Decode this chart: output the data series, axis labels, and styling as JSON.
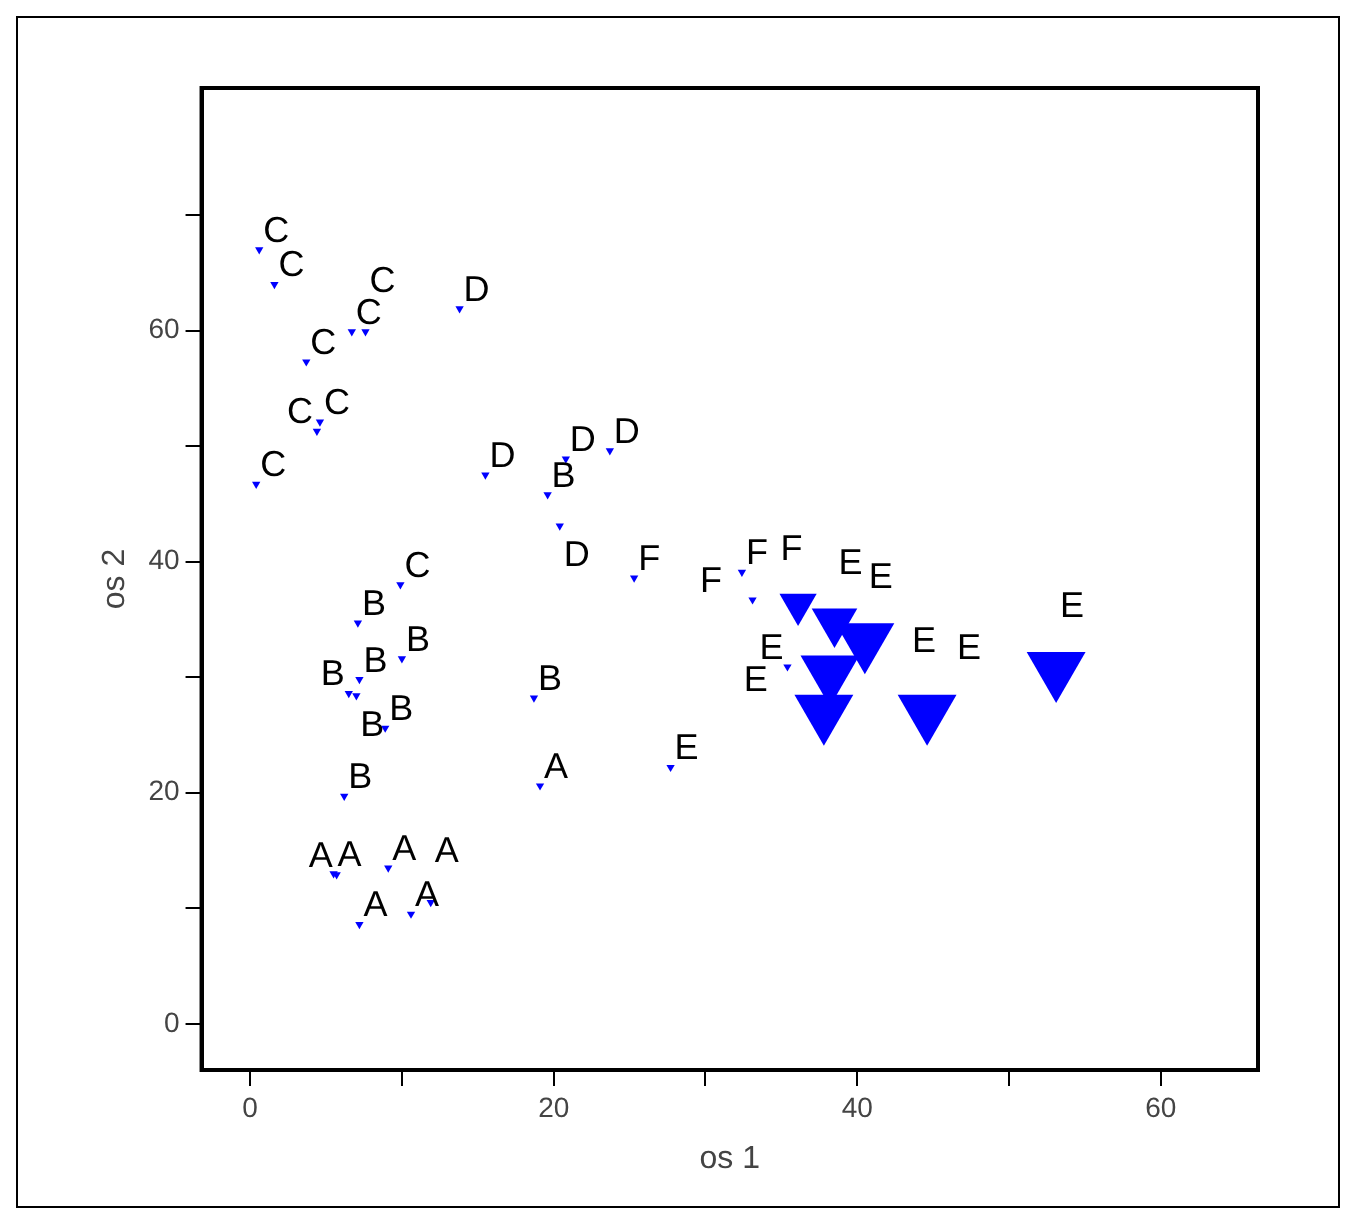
{
  "chart_data": {
    "type": "bubble",
    "xlabel": "os 1",
    "ylabel": "os 2",
    "xlim": [
      -3.2,
      66.4
    ],
    "ylim": [
      -4,
      81
    ],
    "xticks": [
      0,
      {
        "value": 10,
        "label": null
      },
      20,
      {
        "value": 30,
        "label": null
      },
      40,
      {
        "value": 50,
        "label": null
      },
      60
    ],
    "yticks": [
      0,
      {
        "value": 10,
        "label": null
      },
      20,
      {
        "value": 30,
        "label": null
      },
      40,
      {
        "value": 50,
        "label": null
      },
      60,
      {
        "value": 70,
        "label": null
      }
    ],
    "grid": false,
    "legend": false,
    "marker": "triangle",
    "series": [
      {
        "name": "A",
        "color": "#0000ff",
        "x": [
          5.5,
          5.7,
          9.1,
          7.2,
          10.6,
          11.9,
          19.1
        ],
        "values": [
          13.0,
          12.9,
          13.5,
          8.6,
          9.5,
          10.5,
          20.6
        ],
        "sizes": [
          0.02,
          0.02,
          0.02,
          0.02,
          0.02,
          0.02,
          0.02
        ]
      },
      {
        "name": "B",
        "color": "#0000ff",
        "x": [
          7.1,
          10.0,
          7.2,
          6.5,
          7.0,
          8.9,
          6.2,
          18.7,
          19.6
        ],
        "values": [
          34.7,
          31.6,
          29.8,
          28.6,
          28.4,
          25.6,
          19.7,
          28.2,
          45.8
        ],
        "sizes": [
          0.02,
          0.02,
          0.02,
          0.02,
          0.02,
          0.02,
          0.02,
          0.02,
          0.02
        ]
      },
      {
        "name": "C",
        "color": "#0000ff",
        "x": [
          0.6,
          1.6,
          6.7,
          7.6,
          3.7,
          4.6,
          4.4,
          0.4,
          9.9
        ],
        "values": [
          67.0,
          64.0,
          59.9,
          59.9,
          57.3,
          52.1,
          51.3,
          46.7,
          38.0
        ],
        "sizes": [
          0.02,
          0.02,
          0.02,
          0.02,
          0.02,
          0.02,
          0.02,
          0.02,
          0.02
        ]
      },
      {
        "name": "D",
        "color": "#0000ff",
        "x": [
          13.8,
          15.5,
          20.8,
          23.7,
          20.4
        ],
        "values": [
          61.9,
          47.5,
          48.9,
          49.6,
          43.1
        ],
        "sizes": [
          0.02,
          0.02,
          0.02,
          0.02,
          0.02
        ]
      },
      {
        "name": "E",
        "color": "#0000ff",
        "x": [
          27.7,
          35.4,
          38.5,
          38.2,
          40.5,
          37.8,
          44.6,
          53.1
        ],
        "values": [
          22.2,
          30.9,
          34.8,
          30.4,
          33.2,
          27.0,
          27.0,
          30.7
        ],
        "sizes": [
          0.02,
          0.02,
          0.6,
          1,
          1,
          1,
          1,
          1
        ]
      },
      {
        "name": "F",
        "color": "#0000ff",
        "x": [
          25.3,
          32.4,
          33.1,
          36.1
        ],
        "values": [
          38.6,
          39.1,
          36.7,
          36.3
        ],
        "sizes": [
          0.02,
          0.02,
          0.02,
          0.4
        ]
      }
    ]
  }
}
